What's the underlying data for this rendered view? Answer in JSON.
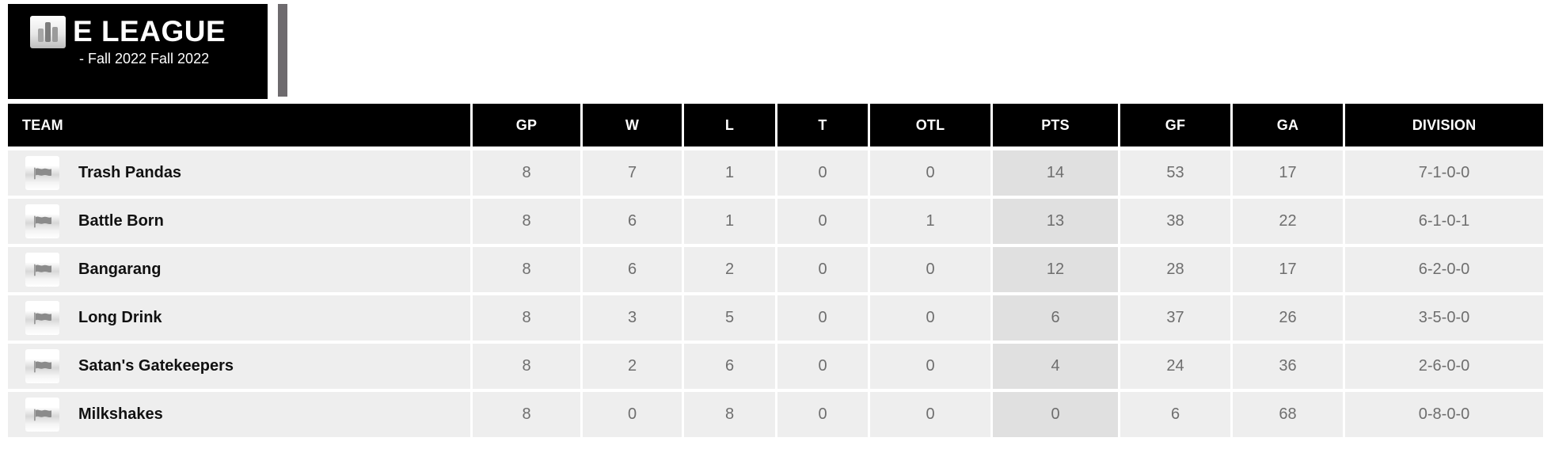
{
  "header": {
    "title": "E LEAGUE",
    "subtitle": "- Fall 2022 Fall 2022"
  },
  "table": {
    "columns": [
      {
        "key": "team",
        "label": "TEAM"
      },
      {
        "key": "gp",
        "label": "GP"
      },
      {
        "key": "w",
        "label": "W"
      },
      {
        "key": "l",
        "label": "L"
      },
      {
        "key": "t",
        "label": "T"
      },
      {
        "key": "otl",
        "label": "OTL"
      },
      {
        "key": "pts",
        "label": "PTS"
      },
      {
        "key": "gf",
        "label": "GF"
      },
      {
        "key": "ga",
        "label": "GA"
      },
      {
        "key": "division",
        "label": "DIVISION"
      }
    ],
    "highlight_column": "pts",
    "rows": [
      {
        "team": "Trash Pandas",
        "gp": "8",
        "w": "7",
        "l": "1",
        "t": "0",
        "otl": "0",
        "pts": "14",
        "gf": "53",
        "ga": "17",
        "division": "7-1-0-0"
      },
      {
        "team": "Battle Born",
        "gp": "8",
        "w": "6",
        "l": "1",
        "t": "0",
        "otl": "1",
        "pts": "13",
        "gf": "38",
        "ga": "22",
        "division": "6-1-0-1"
      },
      {
        "team": "Bangarang",
        "gp": "8",
        "w": "6",
        "l": "2",
        "t": "0",
        "otl": "0",
        "pts": "12",
        "gf": "28",
        "ga": "17",
        "division": "6-2-0-0"
      },
      {
        "team": "Long Drink",
        "gp": "8",
        "w": "3",
        "l": "5",
        "t": "0",
        "otl": "0",
        "pts": "6",
        "gf": "37",
        "ga": "26",
        "division": "3-5-0-0"
      },
      {
        "team": "Satan's Gatekeepers",
        "gp": "8",
        "w": "2",
        "l": "6",
        "t": "0",
        "otl": "0",
        "pts": "4",
        "gf": "24",
        "ga": "36",
        "division": "2-6-0-0"
      },
      {
        "team": "Milkshakes",
        "gp": "8",
        "w": "0",
        "l": "8",
        "t": "0",
        "otl": "0",
        "pts": "0",
        "gf": "6",
        "ga": "68",
        "division": "0-8-0-0"
      }
    ]
  },
  "colors": {
    "header_bg": "#000000",
    "row_bg": "#eeeeee",
    "pts_highlight_bg": "#e0e0e0",
    "accent_bar": "#6e6b6e",
    "number_text": "#6e6e6e",
    "team_text": "#111111"
  }
}
